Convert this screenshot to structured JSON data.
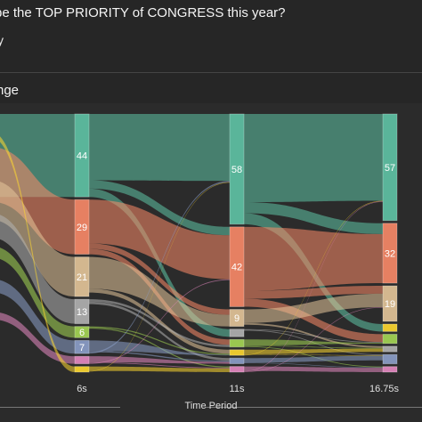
{
  "header": {
    "question": "be the TOP PRIORITY of CONGRESS this year?",
    "subtitle": "y"
  },
  "section": {
    "title": "nge"
  },
  "chart_data": {
    "type": "sankey",
    "xlabel": "Time Period",
    "x_ticks": [
      "6s",
      "11s",
      "16.75s"
    ],
    "columns": [
      {
        "x_label": "6s",
        "nodes": [
          {
            "value": 44,
            "color": "#5fc4a6"
          },
          {
            "value": 29,
            "color": "#fb8a68"
          },
          {
            "value": 21,
            "color": "#e6c69a"
          },
          {
            "value": 13,
            "color": "#b3b3b3"
          },
          {
            "value": 6,
            "color": "#a6d854"
          },
          {
            "value": 7,
            "color": "#8da0cb"
          },
          {
            "value": 4,
            "color": "#e78ac3"
          },
          {
            "value": 3,
            "color": "#ffd92f"
          }
        ]
      },
      {
        "x_label": "11s",
        "nodes": [
          {
            "value": 58,
            "color": "#5fc4a6"
          },
          {
            "value": 42,
            "color": "#fb8a68"
          },
          {
            "value": 9,
            "color": "#e6c69a"
          },
          {
            "value": 4,
            "color": "#b3b3b3"
          },
          {
            "value": 4,
            "color": "#a6d854"
          },
          {
            "value": 3,
            "color": "#ffd92f"
          },
          {
            "value": 3,
            "color": "#8da0cb"
          },
          {
            "value": 3,
            "color": "#e78ac3"
          }
        ]
      },
      {
        "x_label": "16.75s",
        "nodes": [
          {
            "value": 57,
            "color": "#5fc4a6"
          },
          {
            "value": 32,
            "color": "#fb8a68"
          },
          {
            "value": 19,
            "color": "#e6c69a"
          },
          {
            "value": 4,
            "color": "#ffd92f"
          },
          {
            "value": 5,
            "color": "#a6d854"
          },
          {
            "value": 3,
            "color": "#b3b3b3"
          },
          {
            "value": 5,
            "color": "#8da0cb"
          },
          {
            "value": 3,
            "color": "#e78ac3"
          }
        ]
      }
    ]
  }
}
